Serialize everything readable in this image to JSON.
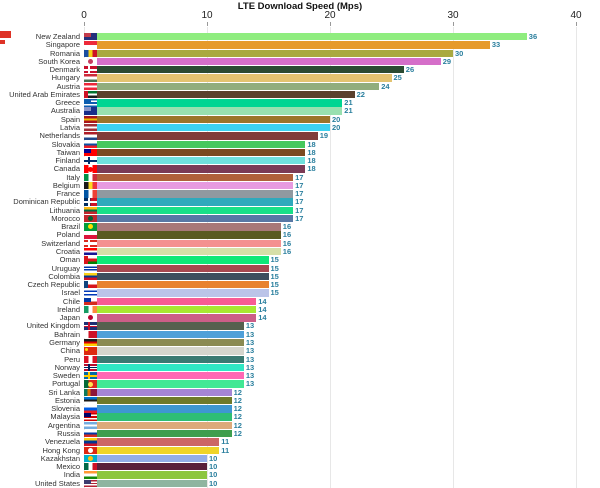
{
  "title": "LTE Download Speed (Mps)",
  "axis": {
    "ticks": [
      "0",
      "10",
      "20",
      "30",
      "40"
    ]
  },
  "colors": {
    "background": "#FFFFFF",
    "value_label": "#2A7F9E",
    "grid": "#E7E7E7",
    "tick_text": "#222222",
    "title_text": "#111111",
    "country_text": "#333333",
    "artifact_red": "#DE3226"
  },
  "chart_data": {
    "type": "bar",
    "orientation": "horizontal",
    "title": "LTE Download Speed (Mps)",
    "xlabel": "",
    "ylabel": "",
    "xlim": [
      0,
      40
    ],
    "grid": true,
    "categories": [
      "New Zealand",
      "Singapore",
      "Romania",
      "South Korea",
      "Denmark",
      "Hungary",
      "Austria",
      "United Arab Emirates",
      "Greece",
      "Australia",
      "Spain",
      "Latvia",
      "Netherlands",
      "Slovakia",
      "Taiwan",
      "Finland",
      "Canada",
      "Italy",
      "Belgium",
      "France",
      "Dominican Republic",
      "Lithuania",
      "Morocco",
      "Brazil",
      "Poland",
      "Switzerland",
      "Croatia",
      "Oman",
      "Uruguay",
      "Colombia",
      "Czech Republic",
      "Israel",
      "Chile",
      "Ireland",
      "Japan",
      "United Kingdom",
      "Bahrain",
      "Germany",
      "China",
      "Peru",
      "Norway",
      "Sweden",
      "Portugal",
      "Sri Lanka",
      "Estonia",
      "Slovenia",
      "Malaysia",
      "Argentina",
      "Russia",
      "Venezuela",
      "Hong Kong",
      "Kazakhstan",
      "Mexico",
      "India",
      "United States"
    ],
    "values": [
      36,
      33,
      30,
      29,
      26,
      25,
      24,
      22,
      21,
      21,
      20,
      20,
      19,
      18,
      18,
      18,
      18,
      17,
      17,
      17,
      17,
      17,
      17,
      16,
      16,
      16,
      16,
      15,
      15,
      15,
      15,
      15,
      14,
      14,
      14,
      13,
      13,
      13,
      13,
      13,
      13,
      13,
      13,
      12,
      12,
      12,
      12,
      12,
      12,
      11,
      11,
      10,
      10,
      10,
      10
    ],
    "bar_colors": [
      "#8FED7F",
      "#E69A2B",
      "#A9A940",
      "#D56FC9",
      "#2A4A31",
      "#E3C370",
      "#91AD7D",
      "#5A402D",
      "#00D592",
      "#98E0AF",
      "#9B7429",
      "#3CD2F0",
      "#803C39",
      "#45C85D",
      "#7A4A20",
      "#70E0DC",
      "#7A3A55",
      "#B0603A",
      "#E79AE0",
      "#9099A0",
      "#2FA9BC",
      "#19E088",
      "#5878A5",
      "#A87878",
      "#5A5A20",
      "#F49090",
      "#D6DFA8",
      "#0FE878",
      "#A84850",
      "#3E4E5E",
      "#E8822F",
      "#BBC4E8",
      "#F85B93",
      "#A8E832",
      "#CC5E88",
      "#56604F",
      "#4FA0D8",
      "#8A8A52",
      "#D5D5CD",
      "#3A7A72",
      "#2FE8C4",
      "#FF69B4",
      "#42E895",
      "#A585D5",
      "#6E7A2A",
      "#3E97D0",
      "#2EBE74",
      "#DDAA7A",
      "#3E9E4E",
      "#CC6666",
      "#EFD428",
      "#93ADE8",
      "#5A1F3A",
      "#8CC63F",
      "#8FB5A0"
    ],
    "flags": [
      {
        "d": "h",
        "s": [
          "#23307C"
        ],
        "o": {
          "t": "canton",
          "c": "#C23B4B"
        }
      },
      {
        "d": "h",
        "s": [
          "#ED2939",
          "#FFFFFF"
        ]
      },
      {
        "d": "v",
        "s": [
          "#1B4FA0",
          "#F7D117",
          "#CE1126"
        ]
      },
      {
        "d": "h",
        "s": [
          "#FFFFFF"
        ],
        "o": {
          "t": "disc",
          "c": "#C53A5E"
        }
      },
      {
        "d": "h",
        "s": [
          "#C8102E"
        ],
        "o": {
          "t": "cross",
          "c": "#FFFFFF"
        }
      },
      {
        "d": "h",
        "s": [
          "#CE2939",
          "#FFFFFF",
          "#477050"
        ]
      },
      {
        "d": "h",
        "s": [
          "#ED2939",
          "#FFFFFF",
          "#ED2939"
        ]
      },
      {
        "d": "h",
        "s": [
          "#00732F",
          "#FFFFFF",
          "#1A1A1A"
        ],
        "o": {
          "t": "leftbar",
          "c": "#CE1126"
        }
      },
      {
        "d": "h",
        "s": [
          "#0D5EAF",
          "#FFFFFF",
          "#0D5EAF",
          "#FFFFFF",
          "#0D5EAF"
        ],
        "o": {
          "t": "canton",
          "c": "#0D5EAF"
        }
      },
      {
        "d": "h",
        "s": [
          "#1A2E8A"
        ],
        "o": {
          "t": "canton",
          "c": "#8A94C8"
        }
      },
      {
        "d": "h",
        "s": [
          "#AA151B",
          "#F1BF00",
          "#AA151B"
        ]
      },
      {
        "d": "h",
        "s": [
          "#9E3039",
          "#FFFFFF",
          "#9E3039"
        ]
      },
      {
        "d": "h",
        "s": [
          "#AE1C28",
          "#FFFFFF",
          "#21468B"
        ]
      },
      {
        "d": "h",
        "s": [
          "#FFFFFF",
          "#0B4EA2",
          "#EE1C25"
        ]
      },
      {
        "d": "h",
        "s": [
          "#FE0000"
        ],
        "o": {
          "t": "canton",
          "c": "#000095"
        }
      },
      {
        "d": "h",
        "s": [
          "#FFFFFF"
        ],
        "o": {
          "t": "cross",
          "c": "#002F6C"
        }
      },
      {
        "d": "v",
        "s": [
          "#FF0000",
          "#FFFFFF",
          "#FF0000"
        ],
        "o": {
          "t": "disc",
          "c": "#FF0000"
        }
      },
      {
        "d": "v",
        "s": [
          "#009246",
          "#FFFFFF",
          "#CE2B37"
        ]
      },
      {
        "d": "v",
        "s": [
          "#1A1A1A",
          "#FDDA24",
          "#EF3340"
        ]
      },
      {
        "d": "v",
        "s": [
          "#0055A4",
          "#FFFFFF",
          "#EF4135"
        ]
      },
      {
        "d": "v",
        "s": [
          "#002D62",
          "#CE1126"
        ],
        "o": {
          "t": "cross",
          "c": "#FFFFFF"
        }
      },
      {
        "d": "h",
        "s": [
          "#FDB913",
          "#006A44",
          "#C1272D"
        ]
      },
      {
        "d": "h",
        "s": [
          "#C1272D"
        ],
        "o": {
          "t": "disc",
          "c": "#006233"
        }
      },
      {
        "d": "h",
        "s": [
          "#009C3B"
        ],
        "o": {
          "t": "disc",
          "c": "#FFDF00"
        }
      },
      {
        "d": "h",
        "s": [
          "#FFFFFF",
          "#DC143C"
        ]
      },
      {
        "d": "h",
        "s": [
          "#DA291C"
        ],
        "o": {
          "t": "cross",
          "c": "#FFFFFF"
        }
      },
      {
        "d": "h",
        "s": [
          "#FF0000",
          "#FFFFFF",
          "#171796"
        ]
      },
      {
        "d": "h",
        "s": [
          "#FFFFFF",
          "#DB161B",
          "#008000"
        ],
        "o": {
          "t": "leftbar",
          "c": "#DB161B"
        }
      },
      {
        "d": "h",
        "s": [
          "#FFFFFF",
          "#0038A8",
          "#FFFFFF",
          "#0038A8",
          "#FFFFFF"
        ]
      },
      {
        "d": "h",
        "s": [
          "#FCD116",
          "#003893",
          "#CE1126"
        ]
      },
      {
        "d": "h",
        "s": [
          "#FFFFFF",
          "#D7141A"
        ],
        "o": {
          "t": "leftbar",
          "c": "#11457E"
        }
      },
      {
        "d": "h",
        "s": [
          "#FFFFFF",
          "#0038B8",
          "#FFFFFF",
          "#0038B8",
          "#FFFFFF"
        ]
      },
      {
        "d": "h",
        "s": [
          "#FFFFFF",
          "#D52B1E"
        ],
        "o": {
          "t": "canton",
          "c": "#0039A6"
        }
      },
      {
        "d": "v",
        "s": [
          "#169B62",
          "#FFFFFF",
          "#FF883E"
        ]
      },
      {
        "d": "h",
        "s": [
          "#FFFFFF"
        ],
        "o": {
          "t": "disc",
          "c": "#BC002D"
        }
      },
      {
        "d": "h",
        "s": [
          "#1F3073"
        ],
        "o": {
          "t": "cross",
          "c": "#FFFFFF",
          "c2": "#C8102E"
        }
      },
      {
        "d": "v",
        "s": [
          "#FFFFFF",
          "#CE1126",
          "#CE1126"
        ]
      },
      {
        "d": "h",
        "s": [
          "#1A1A1A",
          "#DD0000",
          "#FFCE00"
        ]
      },
      {
        "d": "h",
        "s": [
          "#DE2910"
        ],
        "o": {
          "t": "dottl",
          "c": "#FFDE00"
        }
      },
      {
        "d": "v",
        "s": [
          "#D91023",
          "#FFFFFF",
          "#D91023"
        ]
      },
      {
        "d": "h",
        "s": [
          "#BA0C2F"
        ],
        "o": {
          "t": "cross",
          "c": "#FFFFFF",
          "c2": "#00205B"
        }
      },
      {
        "d": "h",
        "s": [
          "#006AA7"
        ],
        "o": {
          "t": "cross",
          "c": "#FECC02"
        }
      },
      {
        "d": "v",
        "s": [
          "#046A38",
          "#DA291C",
          "#DA291C"
        ],
        "o": {
          "t": "disc",
          "c": "#FFE34D"
        }
      },
      {
        "d": "v",
        "s": [
          "#0F7A5A",
          "#E47200",
          "#8D153A",
          "#8D153A"
        ]
      },
      {
        "d": "h",
        "s": [
          "#0072CE",
          "#1A1A1A",
          "#FFFFFF"
        ]
      },
      {
        "d": "h",
        "s": [
          "#FFFFFF",
          "#005CE5",
          "#ED1C24"
        ]
      },
      {
        "d": "h",
        "s": [
          "#CC0001",
          "#FFFFFF",
          "#CC0001",
          "#FFFFFF",
          "#CC0001"
        ],
        "o": {
          "t": "canton",
          "c": "#010066"
        }
      },
      {
        "d": "h",
        "s": [
          "#74ACDF",
          "#FFFFFF",
          "#74ACDF"
        ]
      },
      {
        "d": "h",
        "s": [
          "#FFFFFF",
          "#0039A6",
          "#D52B1E"
        ]
      },
      {
        "d": "h",
        "s": [
          "#FCD116",
          "#003893",
          "#CE1126"
        ]
      },
      {
        "d": "h",
        "s": [
          "#DE2910"
        ],
        "o": {
          "t": "disc",
          "c": "#FFFFFF"
        }
      },
      {
        "d": "h",
        "s": [
          "#00AFCA"
        ],
        "o": {
          "t": "disc",
          "c": "#FEC50C"
        }
      },
      {
        "d": "v",
        "s": [
          "#006847",
          "#FFFFFF",
          "#CE1126"
        ]
      },
      {
        "d": "h",
        "s": [
          "#FF9933",
          "#FFFFFF",
          "#138808"
        ]
      },
      {
        "d": "h",
        "s": [
          "#B22234",
          "#FFFFFF",
          "#B22234",
          "#FFFFFF",
          "#B22234"
        ],
        "o": {
          "t": "canton",
          "c": "#3C3B6E"
        }
      }
    ]
  }
}
